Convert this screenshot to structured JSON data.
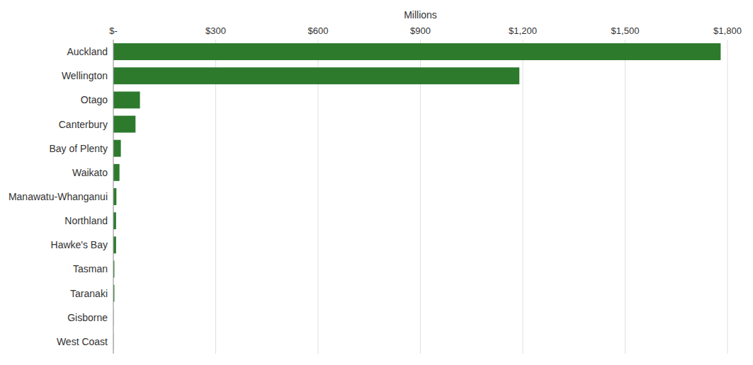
{
  "chart_data": {
    "type": "bar",
    "orientation": "horizontal",
    "categories": [
      "Auckland",
      "Wellington",
      "Otago",
      "Canterbury",
      "Bay of Plenty",
      "Waikato",
      "Manawatu-Whanganui",
      "Northland",
      "Hawke's Bay",
      "Tasman",
      "Taranaki",
      "Gisborne",
      "West Coast"
    ],
    "values": [
      1780,
      1190,
      78,
      65,
      22,
      18,
      9,
      8,
      8,
      3,
      3,
      0.5,
      0.5
    ],
    "color": "#2D7A2D",
    "xlabel": "Millions",
    "xlim": [
      0,
      1800
    ],
    "xticks": [
      {
        "value": 0,
        "label": "$-"
      },
      {
        "value": 300,
        "label": "$300"
      },
      {
        "value": 600,
        "label": "$600"
      },
      {
        "value": 900,
        "label": "$900"
      },
      {
        "value": 1200,
        "label": "$1,200"
      },
      {
        "value": 1500,
        "label": "$1,500"
      },
      {
        "value": 1800,
        "label": "$1,800"
      }
    ],
    "grid": true
  }
}
